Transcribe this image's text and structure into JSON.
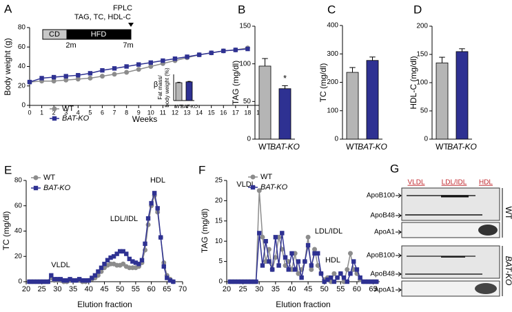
{
  "chart_data": [
    {
      "type": "line",
      "panel": "A",
      "xlabel": "Weeks",
      "ylabel": "Body weight (g)",
      "x": [
        0,
        1,
        2,
        3,
        4,
        5,
        6,
        7,
        8,
        9,
        10,
        11,
        12,
        13,
        14,
        15,
        16,
        17,
        18
      ],
      "xlim": [
        0,
        19
      ],
      "xticks": [
        0,
        1,
        2,
        3,
        4,
        5,
        6,
        7,
        8,
        9,
        10,
        11,
        12,
        13,
        14,
        15,
        16,
        17,
        18,
        19
      ],
      "ylim": [
        0,
        80
      ],
      "yticks": [
        0,
        20,
        40,
        60,
        80
      ],
      "legend": "lower left",
      "series": [
        {
          "name": "WT",
          "color": "#8c8c8c",
          "marker": "circle",
          "values": [
            24,
            25,
            25,
            26,
            27,
            28,
            30,
            32,
            34,
            37,
            40,
            43,
            46,
            49,
            52,
            54,
            56,
            57,
            59
          ]
        },
        {
          "name": "BAT-KO",
          "color": "#2e3192",
          "marker": "square",
          "values": [
            24,
            28,
            29,
            30,
            31,
            33,
            36,
            38,
            40,
            42,
            44,
            46,
            48,
            50,
            52,
            54,
            56,
            57,
            58
          ]
        }
      ],
      "annotations": [
        "FPLC",
        "TAG, TC, HDL-C",
        "CD",
        "HFD",
        "2m",
        "7m"
      ]
    },
    {
      "type": "bar",
      "ylabel": [
        "Fat mass/",
        "body weight (%)"
      ],
      "categories": [
        "WT",
        "BAT-KO"
      ],
      "values": [
        41,
        43
      ],
      "errors": [
        1,
        1
      ],
      "colors": [
        "#b5b5b5",
        "#2e3192"
      ],
      "ylim": [
        0,
        60
      ],
      "annotations": [
        "β"
      ]
    },
    {
      "type": "bar",
      "panel": "B",
      "ylabel": "TAG (mg/dl)",
      "categories": [
        "WT",
        "BAT-KO"
      ],
      "values": [
        97,
        67
      ],
      "errors": [
        10,
        4
      ],
      "colors": [
        "#b5b5b5",
        "#2e3192"
      ],
      "ylim": [
        0,
        150
      ],
      "yticks": [
        0,
        50,
        100,
        150
      ],
      "annotations": [
        "*"
      ]
    },
    {
      "type": "bar",
      "panel": "C",
      "ylabel": "TC (mg/dl)",
      "categories": [
        "WT",
        "BAT-KO"
      ],
      "values": [
        235,
        277
      ],
      "errors": [
        17,
        12
      ],
      "colors": [
        "#b5b5b5",
        "#2e3192"
      ],
      "ylim": [
        0,
        400
      ],
      "yticks": [
        0,
        100,
        200,
        300,
        400
      ]
    },
    {
      "type": "bar",
      "panel": "D",
      "ylabel": "HDL-C (mg/dl)",
      "categories": [
        "WT",
        "BAT-KO"
      ],
      "values": [
        135,
        155
      ],
      "errors": [
        10,
        5
      ],
      "colors": [
        "#b5b5b5",
        "#2e3192"
      ],
      "ylim": [
        0,
        200
      ],
      "yticks": [
        0,
        50,
        100,
        150,
        200
      ]
    },
    {
      "type": "line",
      "panel": "E",
      "xlabel": "Elution fraction",
      "ylabel": "TC (mg/dl)",
      "x": [
        21,
        22,
        23,
        24,
        25,
        26,
        27,
        28,
        29,
        30,
        31,
        32,
        33,
        34,
        35,
        36,
        37,
        38,
        39,
        40,
        41,
        42,
        43,
        44,
        45,
        46,
        47,
        48,
        49,
        50,
        51,
        52,
        53,
        54,
        55,
        56,
        57,
        58,
        59,
        60,
        61,
        62,
        63,
        64,
        65,
        66,
        67
      ],
      "xlim": [
        20,
        70
      ],
      "xticks": [
        20,
        25,
        30,
        35,
        40,
        45,
        50,
        55,
        60,
        65,
        70
      ],
      "ylim": [
        0,
        80
      ],
      "yticks": [
        0,
        20,
        40,
        60,
        80
      ],
      "legend": "upper left",
      "series": [
        {
          "name": "WT",
          "color": "#8c8c8c",
          "marker": "circle",
          "values": [
            0,
            0,
            0,
            0,
            0,
            0,
            0,
            3,
            1,
            1,
            1,
            0,
            0,
            1,
            1,
            1,
            1,
            0,
            0,
            1,
            2,
            3,
            5,
            8,
            11,
            13,
            14,
            14,
            13,
            13,
            14,
            12,
            11,
            11,
            11,
            12,
            15,
            25,
            45,
            60,
            68,
            55,
            35,
            15,
            5,
            2,
            0
          ]
        },
        {
          "name": "BAT-KO",
          "color": "#2e3192",
          "marker": "square",
          "values": [
            0,
            0,
            0,
            0,
            0,
            0,
            0,
            5,
            2,
            2,
            2,
            1,
            1,
            2,
            1,
            1,
            2,
            1,
            1,
            1,
            3,
            5,
            8,
            11,
            14,
            17,
            19,
            20,
            22,
            24,
            24,
            22,
            18,
            16,
            15,
            14,
            17,
            30,
            50,
            62,
            70,
            58,
            35,
            12,
            3,
            1,
            0
          ]
        }
      ],
      "annotations": [
        "VLDL",
        "LDL/IDL",
        "HDL"
      ]
    },
    {
      "type": "line",
      "panel": "F",
      "xlabel": "Elution fraction",
      "ylabel": "TAG (mg/dl)",
      "x": [
        21,
        22,
        23,
        24,
        25,
        26,
        27,
        28,
        29,
        30,
        31,
        32,
        33,
        34,
        35,
        36,
        37,
        38,
        39,
        40,
        41,
        42,
        43,
        44,
        45,
        46,
        47,
        48,
        49,
        50,
        51,
        52,
        53,
        54,
        55,
        56,
        57,
        58,
        59,
        60,
        61,
        62,
        63,
        64,
        65,
        66
      ],
      "xlim": [
        20,
        67
      ],
      "xticks": [
        20,
        25,
        30,
        35,
        40,
        45,
        50,
        55,
        60,
        65
      ],
      "ylim": [
        0,
        25
      ],
      "yticks": [
        0,
        5,
        10,
        15,
        20,
        25
      ],
      "legend": "upper left",
      "series": [
        {
          "name": "WT",
          "color": "#8c8c8c",
          "marker": "circle",
          "values": [
            0,
            0,
            0,
            0,
            0,
            0,
            0,
            0,
            0,
            22.5,
            11,
            5,
            8,
            3,
            6,
            11,
            8,
            4,
            5,
            3,
            7,
            2,
            3,
            5,
            11,
            3,
            8,
            4,
            2,
            0.5,
            1,
            0,
            2,
            1,
            2,
            0,
            3,
            7,
            3,
            2,
            0.5,
            0,
            0,
            0,
            0,
            0
          ]
        },
        {
          "name": "BAT-KO",
          "color": "#2e3192",
          "marker": "square",
          "values": [
            0,
            0,
            0,
            0,
            0,
            0,
            0,
            0,
            0,
            12,
            4,
            10,
            5,
            3,
            11,
            4,
            12,
            6,
            3,
            7,
            3,
            5,
            1,
            5,
            9,
            4,
            7,
            7,
            2,
            0,
            0.5,
            1,
            0,
            1,
            2,
            1,
            0,
            2,
            5,
            3,
            1,
            0,
            0,
            0,
            0,
            0
          ]
        }
      ],
      "annotations": [
        "VLDL",
        "LDL/IDL",
        "HDL"
      ]
    }
  ],
  "blot": {
    "panel": "G",
    "fractions": [
      "VLDL",
      "LDL/IDL",
      "HDL"
    ],
    "bands": [
      "ApoB100",
      "ApoB48",
      "ApoA1"
    ],
    "groups": [
      "WT",
      "BAT-KO"
    ]
  }
}
